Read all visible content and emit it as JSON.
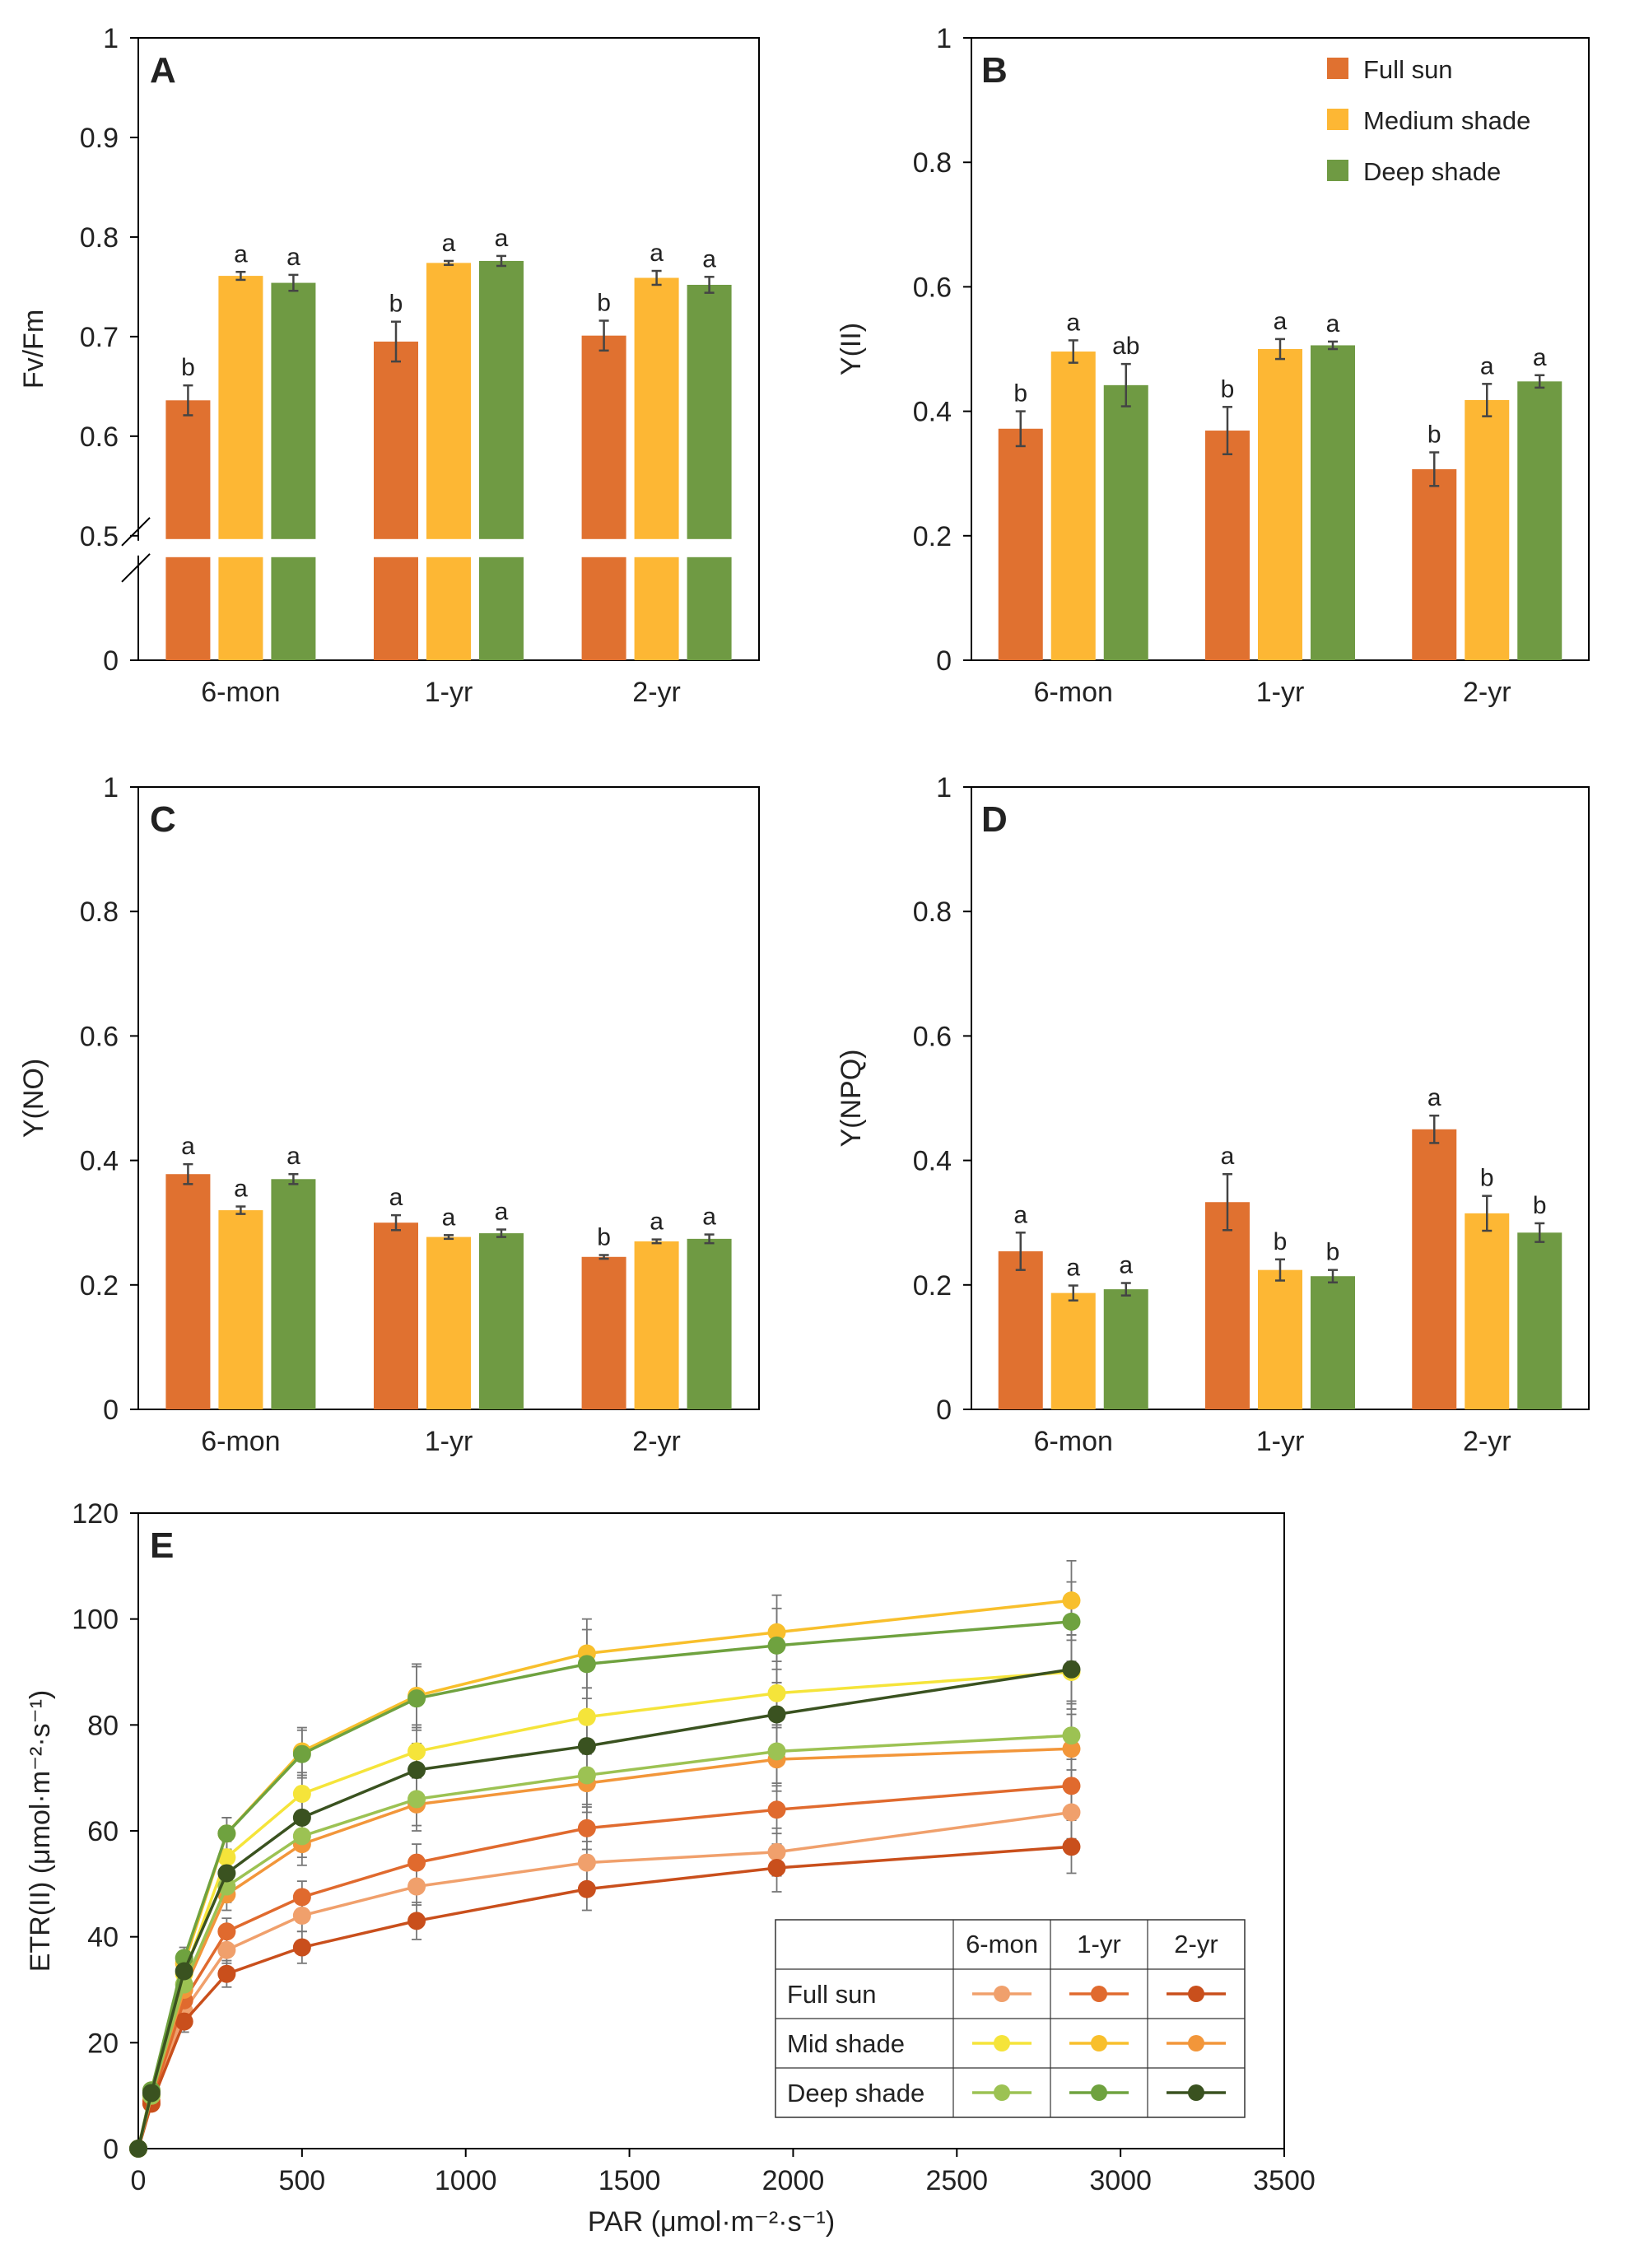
{
  "colors": {
    "full_sun": "#E07130",
    "medium_shade": "#FDB734",
    "deep_shade": "#6F9A43",
    "error_bar": "#444444",
    "frame": "#000000"
  },
  "legend_bars": [
    {
      "name": "Full sun",
      "color": "#E07130"
    },
    {
      "name": "Medium shade",
      "color": "#FDB734"
    },
    {
      "name": "Deep shade",
      "color": "#6F9A43"
    }
  ],
  "chart_data": [
    {
      "id": "A",
      "type": "bar",
      "panel_label": "A",
      "ylabel": "Fv/Fm",
      "xlabel": "",
      "categories": [
        "6-mon",
        "1-yr",
        "2-yr"
      ],
      "broken_axis": true,
      "axis_break_at": 0.5,
      "ylim_upper": [
        0.5,
        1
      ],
      "ylim_lower": [
        0,
        0.5
      ],
      "yticks_upper": [
        "0.5",
        "0.6",
        "0.7",
        "0.8",
        "0.9",
        "1"
      ],
      "yticks_lower": [
        "0"
      ],
      "series": [
        {
          "name": "Full sun",
          "values": [
            0.636,
            0.695,
            0.701
          ],
          "errors": [
            0.015,
            0.02,
            0.015
          ],
          "letters": [
            "b",
            "b",
            "b"
          ]
        },
        {
          "name": "Medium shade",
          "values": [
            0.761,
            0.774,
            0.759
          ],
          "errors": [
            0.004,
            0.002,
            0.007
          ],
          "letters": [
            "a",
            "a",
            "a"
          ]
        },
        {
          "name": "Deep shade",
          "values": [
            0.754,
            0.776,
            0.752
          ],
          "errors": [
            0.008,
            0.005,
            0.008
          ],
          "letters": [
            "a",
            "a",
            "a"
          ]
        }
      ]
    },
    {
      "id": "B",
      "type": "bar",
      "panel_label": "B",
      "ylabel": "Y(II)",
      "xlabel": "",
      "categories": [
        "6-mon",
        "1-yr",
        "2-yr"
      ],
      "ylim": [
        0,
        1
      ],
      "yticks": [
        "0",
        "0.2",
        "0.4",
        "0.6",
        "0.8",
        "1"
      ],
      "legend_position": "top-right",
      "series": [
        {
          "name": "Full sun",
          "values": [
            0.372,
            0.369,
            0.307
          ],
          "errors": [
            0.028,
            0.038,
            0.027
          ],
          "letters": [
            "b",
            "b",
            "b"
          ]
        },
        {
          "name": "Medium shade",
          "values": [
            0.496,
            0.5,
            0.418
          ],
          "errors": [
            0.018,
            0.016,
            0.026
          ],
          "letters": [
            "a",
            "a",
            "a"
          ]
        },
        {
          "name": "Deep shade",
          "values": [
            0.442,
            0.506,
            0.448
          ],
          "errors": [
            0.034,
            0.006,
            0.01
          ],
          "letters": [
            "ab",
            "a",
            "a"
          ]
        }
      ]
    },
    {
      "id": "C",
      "type": "bar",
      "panel_label": "C",
      "ylabel": "Y(NO)",
      "xlabel": "",
      "categories": [
        "6-mon",
        "1-yr",
        "2-yr"
      ],
      "ylim": [
        0,
        1
      ],
      "yticks": [
        "0",
        "0.2",
        "0.4",
        "0.6",
        "0.8",
        "1"
      ],
      "series": [
        {
          "name": "Full sun",
          "values": [
            0.378,
            0.3,
            0.245
          ],
          "errors": [
            0.016,
            0.012,
            0.003
          ],
          "letters": [
            "a",
            "a",
            "b"
          ]
        },
        {
          "name": "Medium shade",
          "values": [
            0.32,
            0.277,
            0.27
          ],
          "errors": [
            0.006,
            0.003,
            0.003
          ],
          "letters": [
            "a",
            "a",
            "a"
          ]
        },
        {
          "name": "Deep shade",
          "values": [
            0.37,
            0.283,
            0.274
          ],
          "errors": [
            0.008,
            0.006,
            0.007
          ],
          "letters": [
            "a",
            "a",
            "a"
          ]
        }
      ]
    },
    {
      "id": "D",
      "type": "bar",
      "panel_label": "D",
      "ylabel": "Y(NPQ)",
      "xlabel": "",
      "categories": [
        "6-mon",
        "1-yr",
        "2-yr"
      ],
      "ylim": [
        0,
        1
      ],
      "yticks": [
        "0",
        "0.2",
        "0.4",
        "0.6",
        "0.8",
        "1"
      ],
      "series": [
        {
          "name": "Full sun",
          "values": [
            0.254,
            0.333,
            0.45
          ],
          "errors": [
            0.03,
            0.045,
            0.022
          ],
          "letters": [
            "a",
            "a",
            "a"
          ]
        },
        {
          "name": "Medium shade",
          "values": [
            0.187,
            0.224,
            0.315
          ],
          "errors": [
            0.012,
            0.017,
            0.028
          ],
          "letters": [
            "a",
            "b",
            "b"
          ]
        },
        {
          "name": "Deep shade",
          "values": [
            0.193,
            0.214,
            0.284
          ],
          "errors": [
            0.01,
            0.01,
            0.015
          ],
          "letters": [
            "a",
            "b",
            "b"
          ]
        }
      ]
    },
    {
      "id": "E",
      "type": "line",
      "panel_label": "E",
      "xlabel": "PAR (μmol·m⁻²·s⁻¹)",
      "ylabel": "ETR(II) (μmol·m⁻²·s⁻¹)",
      "xlim": [
        0,
        3500
      ],
      "ylim": [
        0,
        120
      ],
      "xticks": [
        "0",
        "500",
        "1000",
        "1500",
        "2000",
        "2500",
        "3000",
        "3500"
      ],
      "yticks": [
        "0",
        "20",
        "40",
        "60",
        "80",
        "100",
        "120"
      ],
      "x": [
        0,
        40,
        140,
        270,
        500,
        850,
        1370,
        1950,
        2850
      ],
      "series": [
        {
          "name": "Full sun 6-mon",
          "color": "#F0A06C",
          "values": [
            0,
            8.5,
            26,
            37.5,
            44,
            49.5,
            54,
            56,
            63.5
          ],
          "errors": [
            0,
            1,
            2,
            2.5,
            3,
            3.5,
            4,
            4.5,
            5
          ]
        },
        {
          "name": "Full sun 1-yr",
          "color": "#E06A2E",
          "values": [
            0,
            9,
            28,
            41,
            47.5,
            54,
            60.5,
            64,
            68.5
          ],
          "errors": [
            0,
            1,
            2,
            2.5,
            3,
            3.5,
            4,
            4.5,
            5
          ]
        },
        {
          "name": "Full sun 2-yr",
          "color": "#C94F1C",
          "values": [
            0,
            8.5,
            24,
            33,
            38,
            43,
            49,
            53,
            57
          ],
          "errors": [
            0,
            1,
            2,
            2.5,
            3,
            3.5,
            4,
            4.5,
            5
          ]
        },
        {
          "name": "Mid shade 6-mon",
          "color": "#F5E43A",
          "values": [
            0,
            10,
            33,
            55,
            67,
            75,
            81.5,
            86,
            90
          ],
          "errors": [
            0,
            1,
            2,
            3,
            4,
            5,
            5.5,
            6,
            7
          ]
        },
        {
          "name": "Mid shade 1-yr",
          "color": "#F8BF2C",
          "values": [
            0,
            11,
            35,
            59.5,
            75,
            85.5,
            93.5,
            97.5,
            103.5
          ],
          "errors": [
            0,
            1,
            2,
            3,
            4.5,
            6,
            6.5,
            7,
            7.5
          ]
        },
        {
          "name": "Mid shade 2-yr",
          "color": "#F2963A",
          "values": [
            0,
            10,
            30,
            48,
            57.5,
            65,
            69,
            73.5,
            75.5
          ],
          "errors": [
            0,
            1,
            2,
            3,
            4,
            5,
            5.5,
            6,
            6.5
          ]
        },
        {
          "name": "Deep shade 6-mon",
          "color": "#9CC253",
          "values": [
            0,
            10,
            31,
            49.5,
            59,
            66,
            70.5,
            75,
            78
          ],
          "errors": [
            0,
            1,
            2,
            3,
            4,
            5,
            5.5,
            6,
            6.5
          ]
        },
        {
          "name": "Deep shade 1-yr",
          "color": "#6FA23F",
          "values": [
            0,
            11,
            36,
            59.5,
            74.5,
            85,
            91.5,
            95,
            99.5
          ],
          "errors": [
            0,
            1,
            2,
            3,
            4.5,
            6,
            6.5,
            7,
            7.5
          ]
        },
        {
          "name": "Deep shade 2-yr",
          "color": "#3A5220",
          "values": [
            0,
            10.5,
            33.5,
            52,
            62.5,
            71.5,
            76,
            82,
            90.5
          ],
          "errors": [
            0,
            1,
            2,
            3,
            4,
            5,
            5.5,
            6,
            6.5
          ]
        }
      ]
    }
  ],
  "legend_table": {
    "columns": [
      "6-mon",
      "1-yr",
      "2-yr"
    ],
    "rows": [
      {
        "label": "Full sun",
        "colors": [
          "#F0A06C",
          "#E06A2E",
          "#C94F1C"
        ]
      },
      {
        "label": "Mid shade",
        "colors": [
          "#F5E43A",
          "#F8BF2C",
          "#F2963A"
        ]
      },
      {
        "label": "Deep shade",
        "colors": [
          "#9CC253",
          "#6FA23F",
          "#3A5220"
        ]
      }
    ]
  }
}
